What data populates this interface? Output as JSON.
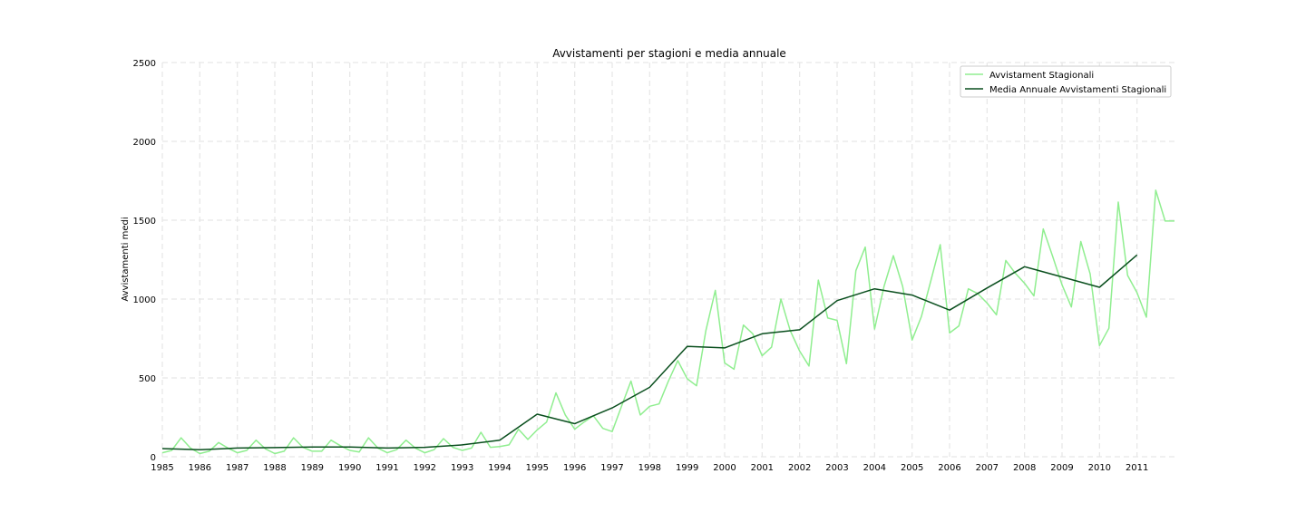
{
  "chart_data": {
    "type": "line",
    "title": "Avvistamenti per stagioni e media annuale",
    "xlabel": "",
    "ylabel": "Avvistamenti medi",
    "xlim": [
      1985,
      2012
    ],
    "ylim": [
      0,
      2500
    ],
    "x_ticks": [
      "1985",
      "1986",
      "1987",
      "1988",
      "1989",
      "1990",
      "1991",
      "1992",
      "1993",
      "1994",
      "1995",
      "1996",
      "1997",
      "1998",
      "1999",
      "2000",
      "2001",
      "2002",
      "2003",
      "2004",
      "2005",
      "2006",
      "2007",
      "2008",
      "2009",
      "2010",
      "2011"
    ],
    "y_ticks": [
      "0",
      "500",
      "1000",
      "1500",
      "2000",
      "2500"
    ],
    "grid": true,
    "legend_position": "top-right",
    "series": [
      {
        "name": "Avvistament Stagionali",
        "color": "#90ee90",
        "x": [
          1985,
          1985.25,
          1985.5,
          1985.75,
          1986,
          1986.25,
          1986.5,
          1986.75,
          1987,
          1987.25,
          1987.5,
          1987.75,
          1988,
          1988.25,
          1988.5,
          1988.75,
          1989,
          1989.25,
          1989.5,
          1989.75,
          1990,
          1990.25,
          1990.5,
          1990.75,
          1991,
          1991.25,
          1991.5,
          1991.75,
          1992,
          1992.25,
          1992.5,
          1992.75,
          1993,
          1993.25,
          1993.5,
          1993.75,
          1994,
          1994.25,
          1994.5,
          1994.75,
          1995,
          1995.25,
          1995.5,
          1995.75,
          1996,
          1996.25,
          1996.5,
          1996.75,
          1997,
          1997.25,
          1997.5,
          1997.75,
          1998,
          1998.25,
          1998.5,
          1998.75,
          1999,
          1999.25,
          1999.5,
          1999.75,
          2000,
          2000.25,
          2000.5,
          2000.75,
          2001,
          2001.25,
          2001.5,
          2001.75,
          2002,
          2002.25,
          2002.5,
          2002.75,
          2003,
          2003.25,
          2003.5,
          2003.75,
          2004,
          2004.25,
          2004.5,
          2004.75,
          2005,
          2005.25,
          2005.5,
          2005.75,
          2006,
          2006.25,
          2006.5,
          2006.75,
          2007,
          2007.25,
          2007.5,
          2007.75,
          2008,
          2008.25,
          2008.5,
          2008.75,
          2009,
          2009.25,
          2009.5,
          2009.75,
          2010,
          2010.25,
          2010.5,
          2010.75,
          2011,
          2011.25,
          2011.5,
          2011.75,
          2012
        ],
        "values": [
          25,
          40,
          120,
          55,
          20,
          35,
          90,
          55,
          25,
          40,
          105,
          50,
          20,
          35,
          120,
          60,
          35,
          35,
          105,
          70,
          40,
          30,
          120,
          55,
          25,
          45,
          105,
          55,
          25,
          45,
          115,
          60,
          40,
          55,
          155,
          60,
          65,
          75,
          175,
          110,
          170,
          220,
          405,
          265,
          175,
          220,
          260,
          180,
          160,
          320,
          480,
          265,
          320,
          335,
          480,
          610,
          495,
          450,
          800,
          1055,
          595,
          555,
          835,
          780,
          640,
          695,
          1000,
          800,
          670,
          575,
          1120,
          880,
          865,
          590,
          1180,
          1330,
          810,
          1080,
          1275,
          1080,
          740,
          890,
          1115,
          1345,
          785,
          830,
          1065,
          1035,
          975,
          900,
          1245,
          1165,
          1100,
          1020,
          1445,
          1270,
          1090,
          950,
          1365,
          1160,
          705,
          815,
          1615,
          1150,
          1040,
          885,
          1690,
          1495,
          1495
        ]
      },
      {
        "name": "Media Annuale Avvistamenti Stagionali",
        "color": "#0a4f1e",
        "x": [
          1985,
          1986,
          1987,
          1988,
          1989,
          1990,
          1991,
          1992,
          1993,
          1994,
          1995,
          1996,
          1997,
          1998,
          1999,
          2000,
          2001,
          2002,
          2003,
          2004,
          2005,
          2006,
          2007,
          2008,
          2009,
          2010,
          2011
        ],
        "values": [
          52,
          45,
          55,
          58,
          62,
          62,
          55,
          60,
          75,
          105,
          270,
          210,
          310,
          440,
          700,
          690,
          780,
          805,
          990,
          1065,
          1025,
          930,
          1070,
          1205,
          1140,
          1075,
          1280
        ]
      }
    ]
  }
}
